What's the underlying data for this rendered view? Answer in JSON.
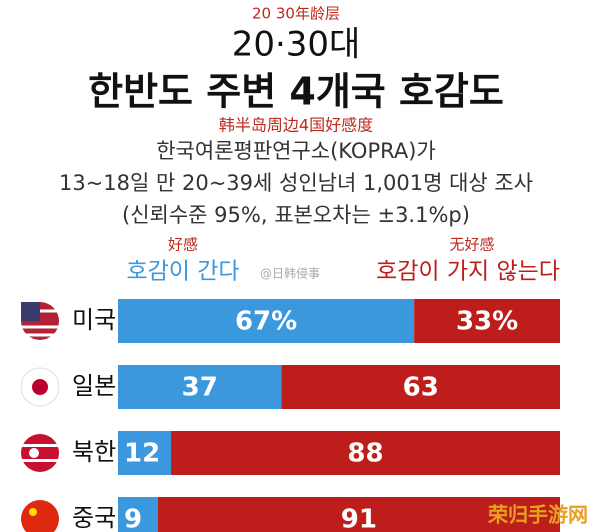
{
  "chart_data": {
    "type": "stacked-hbar",
    "annotation_top": "20 30年龄层",
    "subtitle_top": "20·30대",
    "title": "한반도 주변 4개국 호감도",
    "title_translation": "韩半岛周边4国好感度",
    "source_lines": [
      "한국여론평판연구소(KOPRA)가",
      "13~18일 만 20~39세 성인남녀 1,001명 대상 조사",
      "(신뢰수준 95%, 표본오차는 ±3.1%p)"
    ],
    "series_translations": [
      "好感",
      "无好感"
    ],
    "watermarks": [
      "@日韩侵事",
      "荣归手游网"
    ],
    "categories": [
      "미국",
      "일본",
      "북한",
      "중국"
    ],
    "xlim": [
      0,
      100
    ],
    "series": [
      {
        "name": "호감이 간다",
        "color": "#3b98dd",
        "values": [
          67,
          37,
          12,
          9
        ],
        "value_labels": [
          "67%",
          "37",
          "12",
          "9"
        ]
      },
      {
        "name": "호감이 가지 않는다",
        "color": "#be1e1b",
        "values": [
          33,
          63,
          88,
          91
        ],
        "value_labels": [
          "33%",
          "63",
          "88",
          "91"
        ]
      }
    ]
  }
}
